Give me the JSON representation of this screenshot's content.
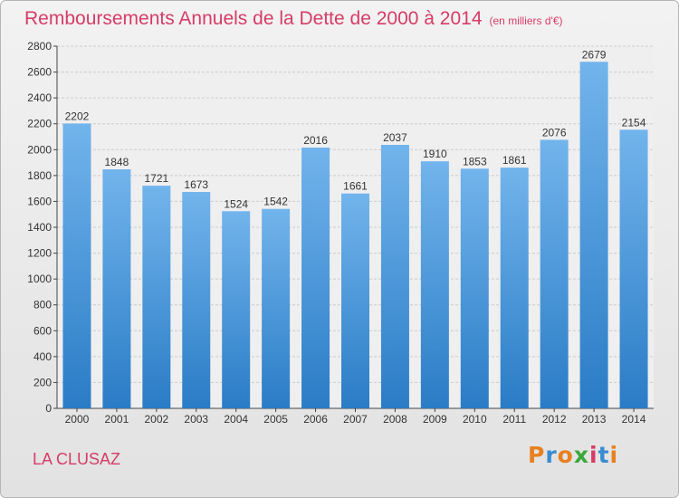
{
  "chart_title": "Remboursements Annuels de la Dette de 2000 à 2014",
  "chart_subtitle": "(en milliers d'€)",
  "location": "LA CLUSAZ",
  "logo_text": "Proxiti",
  "colors": {
    "bar": "#3a8bd1",
    "bar_top": "#6fb0ea",
    "title": "#d63c66",
    "grid": "#cfcfcf"
  },
  "chart_data": {
    "type": "bar",
    "title": "Remboursements Annuels de la Dette de 2000 à 2014",
    "subtitle": "(en milliers d'€)",
    "categories": [
      "2000",
      "2001",
      "2002",
      "2003",
      "2004",
      "2005",
      "2006",
      "2007",
      "2008",
      "2009",
      "2010",
      "2011",
      "2012",
      "2013",
      "2014"
    ],
    "values": [
      2202,
      1848,
      1721,
      1673,
      1524,
      1542,
      2016,
      1661,
      2037,
      1910,
      1853,
      1861,
      2076,
      2679,
      2154
    ],
    "ylim": [
      0,
      2800
    ],
    "yticks": [
      0,
      200,
      400,
      600,
      800,
      1000,
      1200,
      1400,
      1600,
      1800,
      2000,
      2200,
      2400,
      2600,
      2800
    ],
    "grid": true
  }
}
